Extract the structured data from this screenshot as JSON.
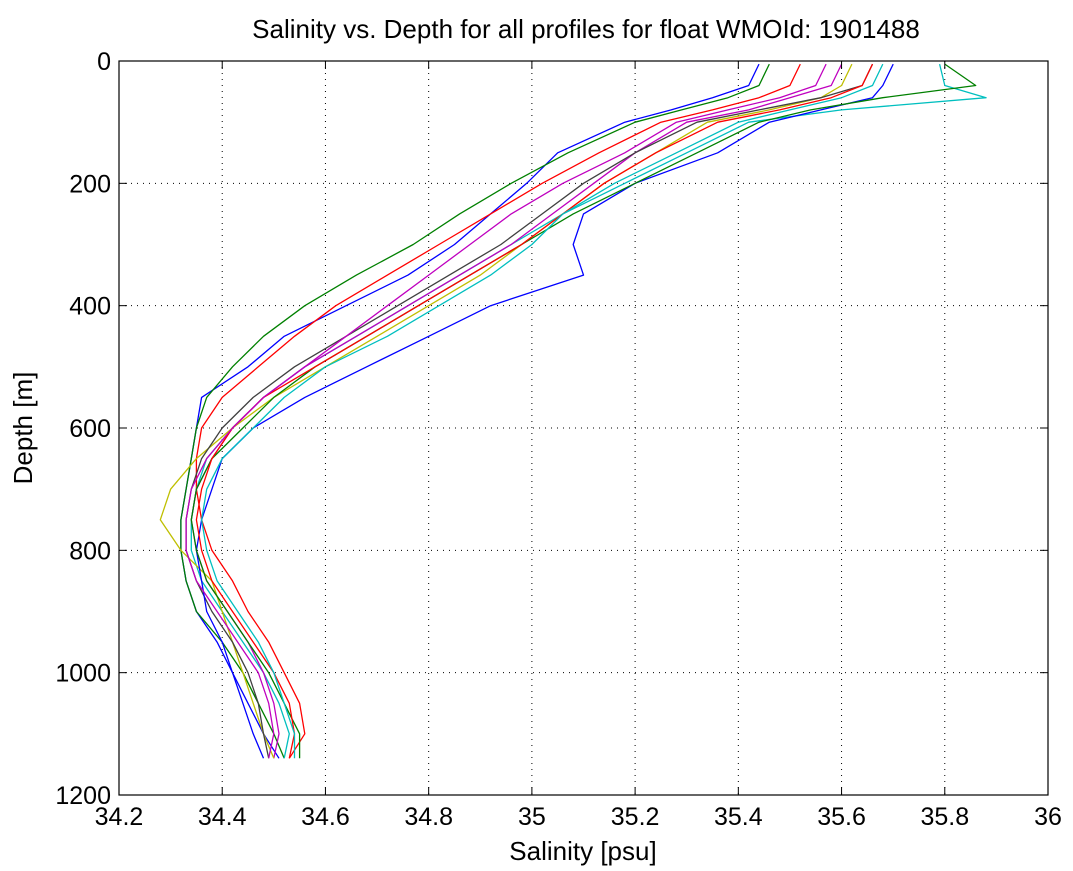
{
  "chart_data": {
    "type": "line",
    "title": "Salinity vs. Depth for all profiles for float WMOId: 1901488",
    "xlabel": "Salinity [psu]",
    "ylabel": "Depth [m]",
    "xlim": [
      34.2,
      36
    ],
    "ylim": [
      0,
      1200
    ],
    "y_reversed": true,
    "grid": true,
    "x_ticks": [
      "34.2",
      "34.4",
      "34.6",
      "34.8",
      "35",
      "35.2",
      "35.4",
      "35.6",
      "35.8",
      "36"
    ],
    "y_ticks": [
      "0",
      "200",
      "400",
      "600",
      "800",
      "1000",
      "1200"
    ],
    "depth": [
      5,
      40,
      60,
      80,
      100,
      150,
      200,
      250,
      300,
      350,
      400,
      450,
      500,
      550,
      600,
      650,
      700,
      750,
      800,
      850,
      900,
      950,
      1000,
      1050,
      1100,
      1140
    ],
    "series": [
      {
        "color": "#0000ff",
        "values": [
          35.44,
          35.42,
          35.35,
          35.27,
          35.18,
          35.05,
          34.99,
          34.92,
          34.85,
          34.76,
          34.64,
          34.52,
          34.45,
          34.36,
          34.35,
          34.34,
          34.33,
          34.32,
          34.32,
          34.33,
          34.35,
          34.39,
          34.42,
          34.45,
          34.48,
          34.51
        ]
      },
      {
        "color": "#008000",
        "values": [
          35.46,
          35.44,
          35.38,
          35.29,
          35.2,
          35.07,
          34.96,
          34.86,
          34.77,
          34.66,
          34.56,
          34.48,
          34.42,
          34.37,
          34.35,
          34.34,
          34.33,
          34.32,
          34.32,
          34.33,
          34.35,
          34.4,
          34.44,
          34.47,
          34.5,
          34.52
        ]
      },
      {
        "color": "#ff0000",
        "values": [
          35.52,
          35.5,
          35.44,
          35.35,
          35.25,
          35.13,
          35.02,
          34.92,
          34.82,
          34.72,
          34.62,
          34.54,
          34.47,
          34.4,
          34.36,
          34.35,
          34.35,
          34.36,
          34.38,
          34.42,
          34.45,
          34.49,
          34.52,
          34.55,
          34.56,
          34.53
        ]
      },
      {
        "color": "#00bfbf",
        "values": [
          35.79,
          35.8,
          35.88,
          35.6,
          35.42,
          35.3,
          35.18,
          35.06,
          34.96,
          34.86,
          34.76,
          34.66,
          34.56,
          34.48,
          34.42,
          34.37,
          34.35,
          34.34,
          34.34,
          34.36,
          34.4,
          34.44,
          34.48,
          34.51,
          34.53,
          34.52
        ]
      },
      {
        "color": "#bf00bf",
        "values": [
          35.6,
          35.58,
          35.5,
          35.42,
          35.3,
          35.2,
          35.12,
          35.04,
          34.96,
          34.86,
          34.76,
          34.66,
          34.56,
          34.48,
          34.42,
          34.38,
          34.35,
          34.34,
          34.35,
          34.37,
          34.41,
          34.45,
          34.48,
          34.5,
          34.51,
          34.5
        ]
      },
      {
        "color": "#bfbf00",
        "values": [
          35.62,
          35.6,
          35.56,
          35.46,
          35.34,
          35.24,
          35.14,
          35.06,
          34.98,
          34.9,
          34.8,
          34.7,
          34.6,
          34.5,
          34.42,
          34.35,
          34.3,
          34.28,
          34.32,
          34.38,
          34.4,
          34.42,
          34.44,
          34.46,
          34.48,
          34.5
        ]
      },
      {
        "color": "#404040",
        "values": [
          35.66,
          35.64,
          35.56,
          35.44,
          35.32,
          35.2,
          35.1,
          35.02,
          34.94,
          34.84,
          34.74,
          34.64,
          34.54,
          34.46,
          34.4,
          34.36,
          34.34,
          34.33,
          34.33,
          34.35,
          34.38,
          34.42,
          34.45,
          34.47,
          34.48,
          34.49
        ]
      },
      {
        "color": "#0000ff",
        "values": [
          35.7,
          35.68,
          35.66,
          35.56,
          35.46,
          35.36,
          35.2,
          35.1,
          35.08,
          35.1,
          34.92,
          34.8,
          34.68,
          34.56,
          34.46,
          34.4,
          34.38,
          34.36,
          34.35,
          34.36,
          34.37,
          34.4,
          34.42,
          34.44,
          34.46,
          34.48
        ]
      },
      {
        "color": "#008000",
        "values": [
          35.8,
          35.86,
          35.68,
          35.54,
          35.44,
          35.32,
          35.2,
          35.08,
          34.98,
          34.88,
          34.78,
          34.68,
          34.58,
          34.5,
          34.44,
          34.38,
          34.35,
          34.34,
          34.35,
          34.37,
          34.41,
          34.45,
          34.49,
          34.52,
          34.55,
          34.55
        ]
      },
      {
        "color": "#ff0000",
        "values": [
          35.66,
          35.64,
          35.58,
          35.48,
          35.36,
          35.24,
          35.14,
          35.06,
          34.98,
          34.88,
          34.78,
          34.68,
          34.58,
          34.48,
          34.42,
          34.38,
          34.36,
          34.35,
          34.36,
          34.38,
          34.42,
          34.46,
          34.5,
          34.53,
          34.54,
          34.53
        ]
      },
      {
        "color": "#00bfbf",
        "values": [
          35.68,
          35.66,
          35.6,
          35.5,
          35.4,
          35.28,
          35.16,
          35.06,
          35.0,
          34.92,
          34.82,
          34.72,
          34.6,
          34.52,
          34.46,
          34.4,
          34.37,
          34.36,
          34.37,
          34.39,
          34.43,
          34.47,
          34.5,
          34.52,
          34.54,
          34.54
        ]
      },
      {
        "color": "#bf00bf",
        "values": [
          35.57,
          35.55,
          35.48,
          35.38,
          35.28,
          35.18,
          35.06,
          34.96,
          34.88,
          34.8,
          34.72,
          34.64,
          34.56,
          34.48,
          34.42,
          34.37,
          34.34,
          34.33,
          34.33,
          34.35,
          34.39,
          34.43,
          34.47,
          34.49,
          34.5,
          34.49
        ]
      }
    ]
  }
}
